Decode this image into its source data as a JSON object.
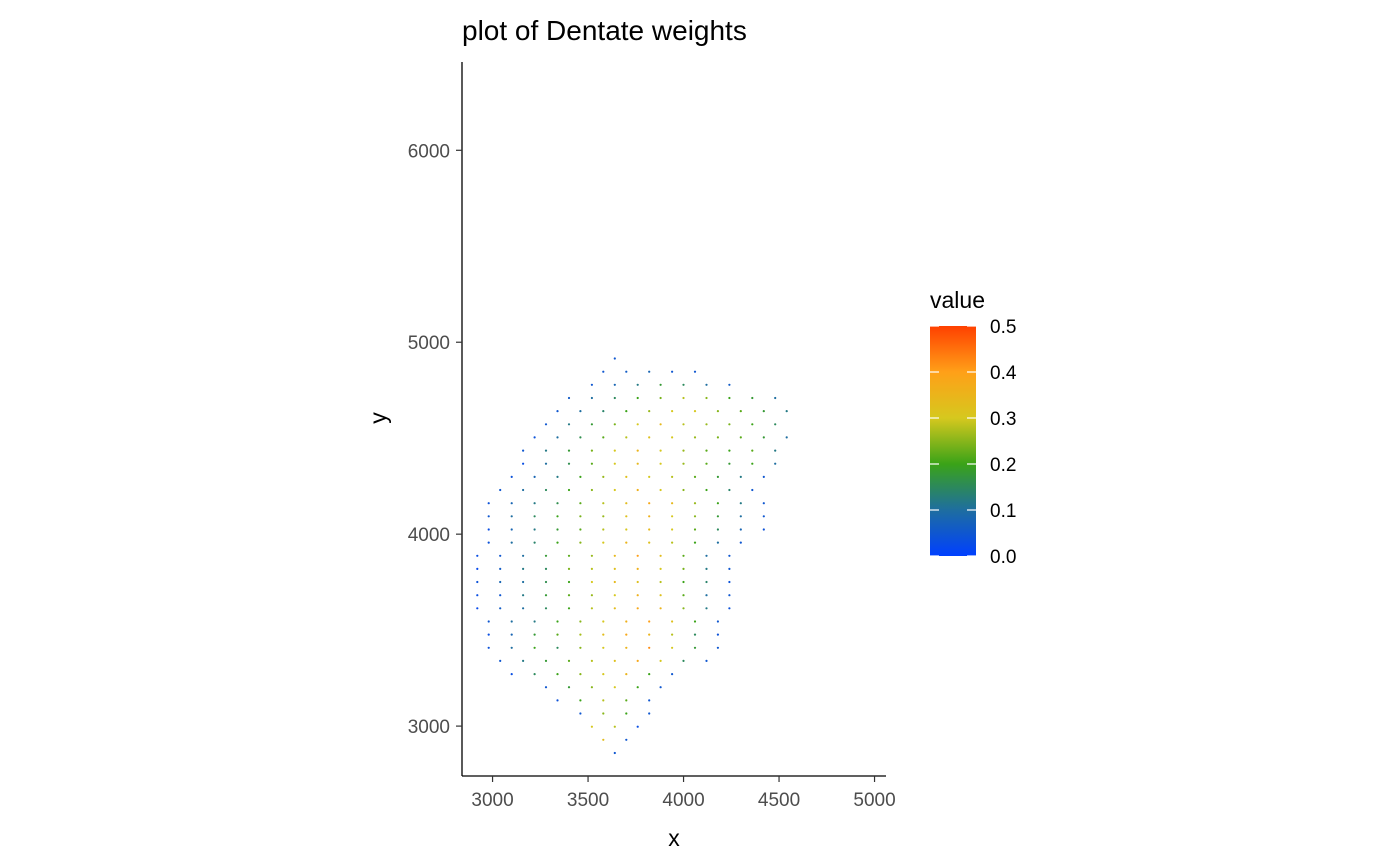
{
  "chart_data": {
    "type": "scatter",
    "title": "plot of Dentate weights",
    "xlabel": "x",
    "ylabel": "y",
    "xlim": [
      2840,
      5060
    ],
    "ylim": [
      2740,
      6460
    ],
    "xticks": [
      3000,
      3500,
      4000,
      4500,
      5000
    ],
    "yticks": [
      3000,
      4000,
      5000,
      6000
    ],
    "xtick_labels": [
      "3000",
      "3500",
      "4000",
      "4500",
      "5000"
    ],
    "ytick_labels": [
      "3000",
      "4000",
      "5000",
      "6000"
    ],
    "grid": false,
    "legend": {
      "title": "value",
      "placement": "right",
      "type": "colorbar",
      "ticks": [
        0.0,
        0.1,
        0.2,
        0.3,
        0.4,
        0.5
      ],
      "tick_labels": [
        "0.0",
        "0.1",
        "0.2",
        "0.3",
        "0.4",
        "0.5"
      ],
      "stops": [
        {
          "value": 0.0,
          "color": "#0040ff"
        },
        {
          "value": 0.1,
          "color": "#1e6ea0"
        },
        {
          "value": 0.2,
          "color": "#3aa318"
        },
        {
          "value": 0.3,
          "color": "#d6c81e"
        },
        {
          "value": 0.4,
          "color": "#ffa018"
        },
        {
          "value": 0.5,
          "color": "#ff4000"
        }
      ]
    },
    "grid_spec": {
      "x0": 2920,
      "dx": 120,
      "y0": 2860,
      "dy": 137,
      "rows": [
        {
          "c": 12,
          "n": 1,
          "v": [
            0.05
          ]
        },
        {
          "c": 11,
          "n": 2,
          "v": [
            0.33,
            0.05
          ]
        },
        {
          "c": 10,
          "n": 3,
          "v": [
            0.3,
            0.28,
            0.03
          ]
        },
        {
          "c": 9,
          "n": 4,
          "v": [
            0.05,
            0.25,
            0.2,
            0.05
          ]
        },
        {
          "c": 7,
          "n": 5,
          "v": [
            0.04,
            0.2,
            0.28,
            0.22,
            0.05
          ]
        },
        {
          "c": 6,
          "n": 6,
          "v": [
            0.05,
            0.18,
            0.25,
            0.3,
            0.2,
            0.05
          ]
        },
        {
          "c": 3,
          "n": 8,
          "v": [
            0.03,
            0.15,
            0.2,
            0.25,
            0.3,
            0.35,
            0.2,
            0.05
          ]
        },
        {
          "c": 2,
          "n": 10,
          "v": [
            0.05,
            0.12,
            0.18,
            0.22,
            0.28,
            0.32,
            0.38,
            0.3,
            0.15,
            0.05
          ]
        },
        {
          "c": 1,
          "n": 11,
          "v": [
            0.04,
            0.1,
            0.2,
            0.15,
            0.25,
            0.3,
            0.35,
            0.42,
            0.3,
            0.18,
            0.05
          ]
        },
        {
          "c": 1,
          "n": 11,
          "v": [
            0.03,
            0.08,
            0.18,
            0.22,
            0.27,
            0.33,
            0.38,
            0.35,
            0.28,
            0.15,
            0.04
          ]
        },
        {
          "c": 1,
          "n": 11,
          "v": [
            0.05,
            0.1,
            0.12,
            0.2,
            0.25,
            0.3,
            0.36,
            0.4,
            0.32,
            0.2,
            0.05
          ]
        },
        {
          "c": 0,
          "n": 12,
          "v": [
            0.02,
            0.06,
            0.1,
            0.15,
            0.2,
            0.28,
            0.33,
            0.38,
            0.35,
            0.25,
            0.12,
            0.04
          ]
        },
        {
          "c": 0,
          "n": 12,
          "v": [
            0.03,
            0.05,
            0.12,
            0.18,
            0.22,
            0.26,
            0.3,
            0.36,
            0.32,
            0.22,
            0.1,
            0.05
          ]
        },
        {
          "c": 0,
          "n": 12,
          "v": [
            0.04,
            0.08,
            0.1,
            0.16,
            0.2,
            0.3,
            0.34,
            0.32,
            0.28,
            0.2,
            0.14,
            0.04
          ]
        },
        {
          "c": 0,
          "n": 12,
          "v": [
            0.02,
            0.06,
            0.12,
            0.15,
            0.24,
            0.28,
            0.32,
            0.36,
            0.3,
            0.24,
            0.12,
            0.05
          ]
        },
        {
          "c": 0,
          "n": 12,
          "v": [
            0.03,
            0.05,
            0.1,
            0.18,
            0.22,
            0.26,
            0.34,
            0.4,
            0.33,
            0.22,
            0.1,
            0.05
          ]
        },
        {
          "c": 1,
          "n": 12,
          "v": [
            0.04,
            0.1,
            0.14,
            0.2,
            0.25,
            0.3,
            0.35,
            0.32,
            0.28,
            0.2,
            0.1,
            0.05
          ]
        },
        {
          "c": 1,
          "n": 13,
          "v": [
            0.03,
            0.08,
            0.12,
            0.18,
            0.22,
            0.28,
            0.3,
            0.34,
            0.3,
            0.22,
            0.15,
            0.08,
            0.04
          ]
        },
        {
          "c": 1,
          "n": 13,
          "v": [
            0.05,
            0.1,
            0.15,
            0.2,
            0.24,
            0.26,
            0.32,
            0.36,
            0.3,
            0.25,
            0.18,
            0.1,
            0.05
          ]
        },
        {
          "c": 1,
          "n": 13,
          "v": [
            0.04,
            0.08,
            0.12,
            0.16,
            0.22,
            0.28,
            0.33,
            0.38,
            0.34,
            0.26,
            0.2,
            0.12,
            0.05
          ]
        },
        {
          "c": 2,
          "n": 12,
          "v": [
            0.05,
            0.1,
            0.15,
            0.2,
            0.25,
            0.3,
            0.36,
            0.3,
            0.25,
            0.2,
            0.14,
            0.05
          ]
        },
        {
          "c": 3,
          "n": 12,
          "v": [
            0.04,
            0.08,
            0.12,
            0.2,
            0.26,
            0.32,
            0.3,
            0.28,
            0.22,
            0.18,
            0.12,
            0.05
          ]
        },
        {
          "c": 4,
          "n": 12,
          "v": [
            0.03,
            0.1,
            0.16,
            0.22,
            0.3,
            0.34,
            0.3,
            0.26,
            0.22,
            0.18,
            0.2,
            0.1
          ]
        },
        {
          "c": 4,
          "n": 12,
          "v": [
            0.05,
            0.12,
            0.18,
            0.24,
            0.3,
            0.35,
            0.3,
            0.26,
            0.22,
            0.2,
            0.22,
            0.12
          ]
        },
        {
          "c": 5,
          "n": 12,
          "v": [
            0.04,
            0.1,
            0.16,
            0.22,
            0.28,
            0.32,
            0.3,
            0.26,
            0.24,
            0.22,
            0.18,
            0.1
          ]
        },
        {
          "c": 6,
          "n": 11,
          "v": [
            0.05,
            0.12,
            0.18,
            0.24,
            0.3,
            0.34,
            0.28,
            0.26,
            0.24,
            0.2,
            0.15
          ]
        },
        {
          "c": 7,
          "n": 11,
          "v": [
            0.05,
            0.1,
            0.14,
            0.2,
            0.26,
            0.3,
            0.3,
            0.25,
            0.22,
            0.18,
            0.12
          ]
        },
        {
          "c": 8,
          "n": 10,
          "v": [
            0.06,
            0.1,
            0.15,
            0.2,
            0.24,
            0.28,
            0.25,
            0.2,
            0.18,
            0.1
          ]
        },
        {
          "c": 10,
          "n": 7,
          "v": [
            0.05,
            0.08,
            0.12,
            0.18,
            0.15,
            0.1,
            0.06
          ]
        },
        {
          "c": 11,
          "n": 5,
          "v": [
            0.05,
            0.06,
            0.08,
            0.05,
            0.05
          ]
        },
        {
          "c": 12,
          "n": 1,
          "v": [
            0.05
          ]
        }
      ]
    }
  }
}
